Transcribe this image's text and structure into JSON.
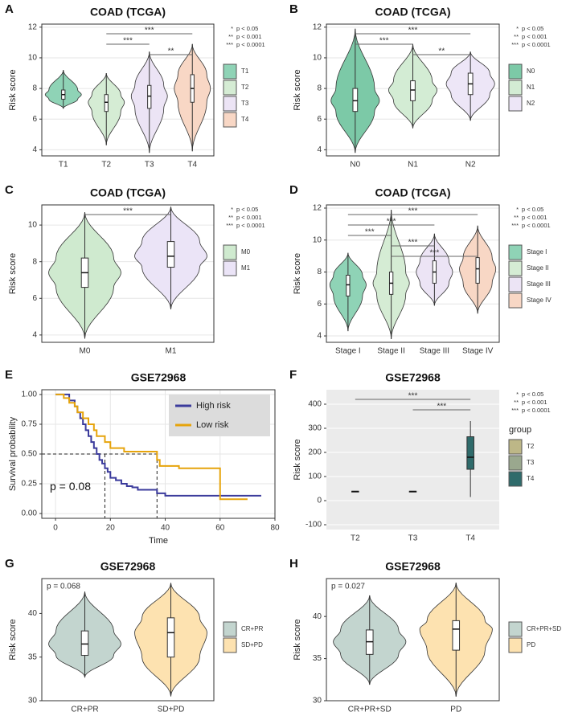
{
  "chart_data": [
    {
      "type": "violin",
      "panel": "A",
      "title": "COAD (TCGA)",
      "y_label": "Risk score",
      "grid": true,
      "ylim": [
        3.6,
        12.2
      ],
      "yticks": [
        4,
        6,
        8,
        10,
        12
      ],
      "categories": [
        "T1",
        "T2",
        "T3",
        "T4"
      ],
      "colors": [
        "#8fd3b6",
        "#d5ecd4",
        "#ece4f5",
        "#f8d7c5"
      ],
      "stats": [
        {
          "min": 6.7,
          "q1": 7.3,
          "median": 7.6,
          "q3": 7.9,
          "max": 9.2
        },
        {
          "min": 4.3,
          "q1": 6.5,
          "median": 7.1,
          "q3": 7.6,
          "max": 9.0
        },
        {
          "min": 3.8,
          "q1": 6.7,
          "median": 7.5,
          "q3": 8.2,
          "max": 10.4
        },
        {
          "min": 3.9,
          "q1": 7.1,
          "median": 8.0,
          "q3": 8.9,
          "max": 10.9
        }
      ],
      "significance": [
        {
          "from": "T2",
          "to": "T4",
          "label": "***"
        },
        {
          "from": "T2",
          "to": "T3",
          "label": "***"
        },
        {
          "from": "T3",
          "to": "T4",
          "label": "**"
        }
      ],
      "p_legend": [
        {
          "stars": "*",
          "text": "p < 0.05"
        },
        {
          "stars": "**",
          "text": "p < 0.001"
        },
        {
          "stars": "***",
          "text": "p < 0.0001"
        }
      ]
    },
    {
      "type": "violin",
      "panel": "B",
      "title": "COAD (TCGA)",
      "y_label": "Risk score",
      "grid": true,
      "ylim": [
        3.6,
        12.2
      ],
      "yticks": [
        4,
        6,
        8,
        10,
        12
      ],
      "categories": [
        "N0",
        "N1",
        "N2"
      ],
      "colors": [
        "#7cc9a7",
        "#d3ecd4",
        "#ede6f7"
      ],
      "stats": [
        {
          "min": 3.8,
          "q1": 6.5,
          "median": 7.2,
          "q3": 8.0,
          "max": 11.9
        },
        {
          "min": 5.4,
          "q1": 7.2,
          "median": 7.9,
          "q3": 8.5,
          "max": 10.9
        },
        {
          "min": 5.9,
          "q1": 7.6,
          "median": 8.3,
          "q3": 9.0,
          "max": 10.4
        }
      ],
      "significance": [
        {
          "from": "N0",
          "to": "N2",
          "label": "***"
        },
        {
          "from": "N0",
          "to": "N1",
          "label": "***"
        },
        {
          "from": "N1",
          "to": "N2",
          "label": "**"
        }
      ],
      "p_legend": [
        {
          "stars": "*",
          "text": "p < 0.05"
        },
        {
          "stars": "**",
          "text": "p < 0.001"
        },
        {
          "stars": "***",
          "text": "p < 0.0001"
        }
      ]
    },
    {
      "type": "violin",
      "panel": "C",
      "title": "COAD (TCGA)",
      "y_label": "Risk score",
      "grid": true,
      "ylim": [
        3.6,
        11.1
      ],
      "yticks": [
        4,
        6,
        8,
        10
      ],
      "categories": [
        "M0",
        "M1"
      ],
      "colors": [
        "#cfeacf",
        "#ebe4f7"
      ],
      "stats": [
        {
          "min": 3.8,
          "q1": 6.6,
          "median": 7.4,
          "q3": 8.2,
          "max": 10.7
        },
        {
          "min": 5.4,
          "q1": 7.7,
          "median": 8.3,
          "q3": 9.1,
          "max": 11.0
        }
      ],
      "significance": [
        {
          "from": "M0",
          "to": "M1",
          "label": "***"
        }
      ],
      "p_legend": [
        {
          "stars": "*",
          "text": "p < 0.05"
        },
        {
          "stars": "**",
          "text": "p < 0.001"
        },
        {
          "stars": "***",
          "text": "p < 0.0001"
        }
      ]
    },
    {
      "type": "violin",
      "panel": "D",
      "title": "COAD (TCGA)",
      "y_label": "Risk score",
      "grid": true,
      "ylim": [
        3.6,
        12.2
      ],
      "yticks": [
        4,
        6,
        8,
        10,
        12
      ],
      "categories": [
        "Stage I",
        "Stage II",
        "Stage III",
        "Stage IV"
      ],
      "colors": [
        "#8fd3b6",
        "#d5ecd4",
        "#ece4f5",
        "#f8d7c5"
      ],
      "stats": [
        {
          "min": 4.3,
          "q1": 6.5,
          "median": 7.2,
          "q3": 7.8,
          "max": 9.2
        },
        {
          "min": 3.8,
          "q1": 6.6,
          "median": 7.3,
          "q3": 8.0,
          "max": 11.9
        },
        {
          "min": 5.9,
          "q1": 7.3,
          "median": 8.0,
          "q3": 8.7,
          "max": 10.4
        },
        {
          "min": 5.4,
          "q1": 7.3,
          "median": 8.2,
          "q3": 8.9,
          "max": 10.9
        }
      ],
      "significance": [
        {
          "from": "Stage I",
          "to": "Stage IV",
          "label": "***"
        },
        {
          "from": "Stage I",
          "to": "Stage III",
          "label": "***"
        },
        {
          "from": "Stage I",
          "to": "Stage II",
          "label": "***"
        },
        {
          "from": "Stage II",
          "to": "Stage III",
          "label": "***"
        },
        {
          "from": "Stage II",
          "to": "Stage IV",
          "label": "***"
        }
      ],
      "p_legend": [
        {
          "stars": "*",
          "text": "p < 0.05"
        },
        {
          "stars": "**",
          "text": "p < 0.001"
        },
        {
          "stars": "***",
          "text": "p < 0.0001"
        }
      ]
    },
    {
      "type": "survival",
      "panel": "E",
      "title": "GSE72968",
      "y_label": "Survival probability",
      "x_label": "Time",
      "grid": true,
      "xlim": [
        -5,
        80
      ],
      "xticks": [
        0,
        20,
        40,
        60,
        80
      ],
      "ylim": [
        -0.04,
        1.04
      ],
      "yticks": [
        {
          "value": 0,
          "label": "0.00"
        },
        {
          "value": 0.25,
          "label": "0.25"
        },
        {
          "value": 0.5,
          "label": "0.50"
        },
        {
          "value": 0.75,
          "label": "0.75"
        },
        {
          "value": 1,
          "label": "1.00"
        }
      ],
      "series": [
        {
          "name": "High risk",
          "color": "#3b3b9c",
          "x": [
            0,
            5,
            7,
            8,
            9,
            10,
            11,
            12,
            13,
            14,
            15,
            16,
            17,
            18,
            19,
            20,
            22,
            24,
            26,
            28,
            30,
            35,
            37,
            40,
            50,
            60,
            75
          ],
          "values": [
            1,
            0.95,
            0.9,
            0.85,
            0.8,
            0.75,
            0.7,
            0.65,
            0.6,
            0.55,
            0.5,
            0.45,
            0.42,
            0.38,
            0.35,
            0.3,
            0.28,
            0.25,
            0.23,
            0.22,
            0.2,
            0.2,
            0.17,
            0.15,
            0.15,
            0.15,
            0.15
          ]
        },
        {
          "name": "Low risk",
          "color": "#e6a40c",
          "x": [
            0,
            3,
            5,
            7,
            8,
            10,
            12,
            14,
            15,
            18,
            20,
            25,
            27,
            35,
            37,
            38,
            45,
            58,
            60,
            70
          ],
          "values": [
            1,
            0.97,
            0.93,
            0.9,
            0.85,
            0.8,
            0.75,
            0.7,
            0.65,
            0.6,
            0.55,
            0.52,
            0.52,
            0.52,
            0.45,
            0.4,
            0.38,
            0.38,
            0.12,
            0.12
          ]
        }
      ],
      "median_survival": {
        "level": 0.5,
        "times": [
          18,
          37
        ]
      },
      "annotation": "p = 0.08"
    },
    {
      "type": "box",
      "panel": "F",
      "title": "GSE72968",
      "y_label": "Risk score",
      "grid": true,
      "legend_title": "group",
      "ylim": [
        -120,
        460
      ],
      "yticks": [
        -100,
        0,
        100,
        200,
        300,
        400
      ],
      "categories": [
        "T2",
        "T3",
        "T4"
      ],
      "colors": [
        "#bdb787",
        "#9aa88e",
        "#2f6b6b"
      ],
      "stats": [
        {
          "min": 35,
          "q1": 37,
          "median": 38,
          "q3": 39,
          "max": 40
        },
        {
          "min": 35,
          "q1": 37,
          "median": 38,
          "q3": 39,
          "max": 40
        },
        {
          "min": 15,
          "q1": 130,
          "median": 180,
          "q3": 265,
          "max": 330
        }
      ],
      "significance": [
        {
          "from": "T2",
          "to": "T4",
          "label": "***"
        },
        {
          "from": "T3",
          "to": "T4",
          "label": "***"
        }
      ],
      "p_legend": [
        {
          "stars": "*",
          "text": "p < 0.05"
        },
        {
          "stars": "**",
          "text": "p < 0.001"
        },
        {
          "stars": "***",
          "text": "p < 0.0001"
        }
      ]
    },
    {
      "type": "violin",
      "panel": "G",
      "title": "GSE72968",
      "y_label": "Risk score",
      "grid": false,
      "ylim": [
        30,
        44
      ],
      "yticks": [
        30,
        35,
        40
      ],
      "categories": [
        "CR+PR",
        "SD+PD"
      ],
      "colors": [
        "#c3d5cf",
        "#fde2b0"
      ],
      "stats": [
        {
          "min": 32.7,
          "q1": 35.2,
          "median": 36.5,
          "q3": 38.0,
          "max": 42.5
        },
        {
          "min": 30.5,
          "q1": 35.0,
          "median": 37.8,
          "q3": 39.5,
          "max": 43.5
        }
      ],
      "annotation": "p = 0.068"
    },
    {
      "type": "violin",
      "panel": "H",
      "title": "GSE72968",
      "y_label": "Risk score",
      "grid": false,
      "ylim": [
        30,
        44.5
      ],
      "yticks": [
        30,
        35,
        40
      ],
      "categories": [
        "CR+PR+SD",
        "PD"
      ],
      "colors": [
        "#c3d5cf",
        "#fde2b0"
      ],
      "stats": [
        {
          "min": 31.9,
          "q1": 35.5,
          "median": 37.0,
          "q3": 38.4,
          "max": 42.5
        },
        {
          "min": 30.5,
          "q1": 36.0,
          "median": 38.5,
          "q3": 39.5,
          "max": 44.0
        }
      ],
      "annotation": "p = 0.027"
    }
  ]
}
